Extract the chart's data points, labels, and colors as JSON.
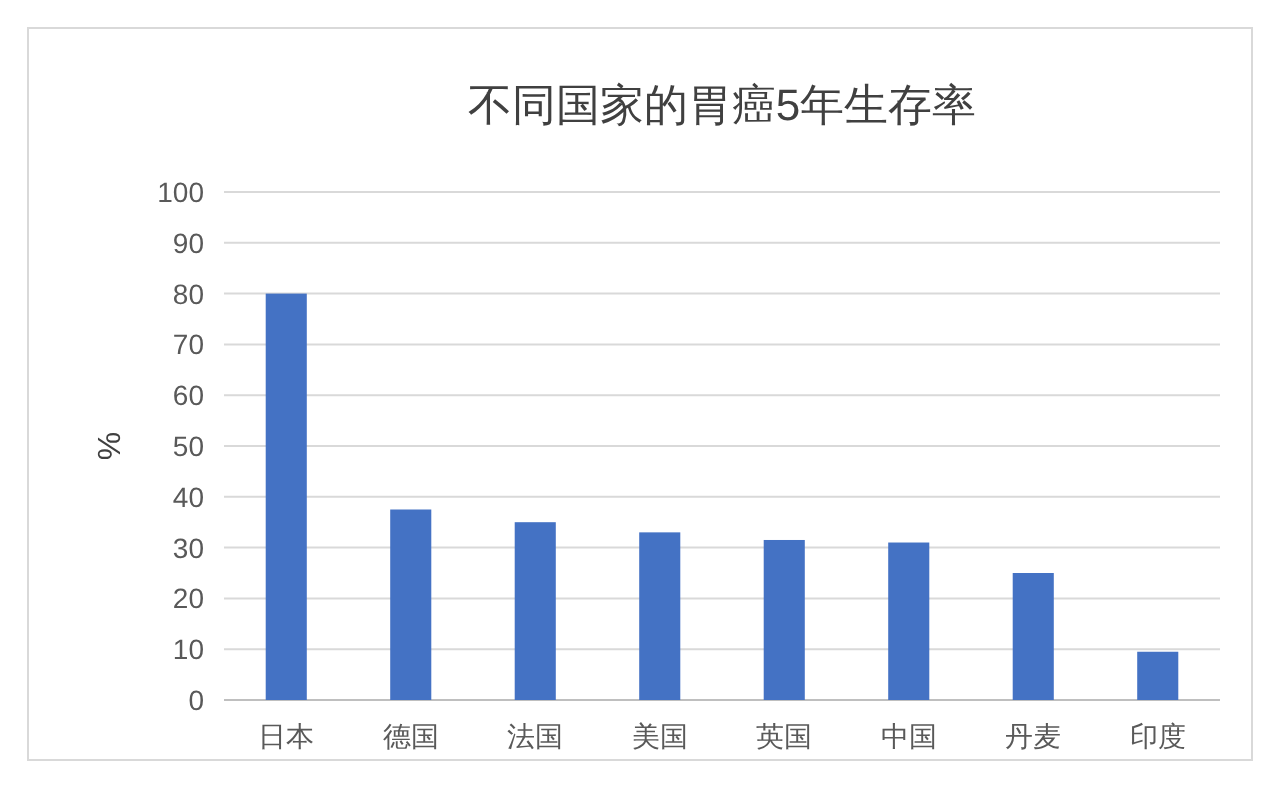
{
  "chart_data": {
    "type": "bar",
    "title": "不同国家的胃癌5年生存率",
    "ylabel": "%",
    "categories": [
      "日本",
      "德国",
      "法国",
      "美国",
      "英国",
      "中国",
      "丹麦",
      "印度"
    ],
    "values": [
      80,
      37.5,
      35,
      33,
      31.5,
      31,
      25,
      9.5
    ],
    "color": "#4472c4",
    "ylim": [
      0,
      100
    ],
    "yticks": [
      0,
      10,
      20,
      30,
      40,
      50,
      60,
      70,
      80,
      90,
      100
    ],
    "grid": "y"
  }
}
